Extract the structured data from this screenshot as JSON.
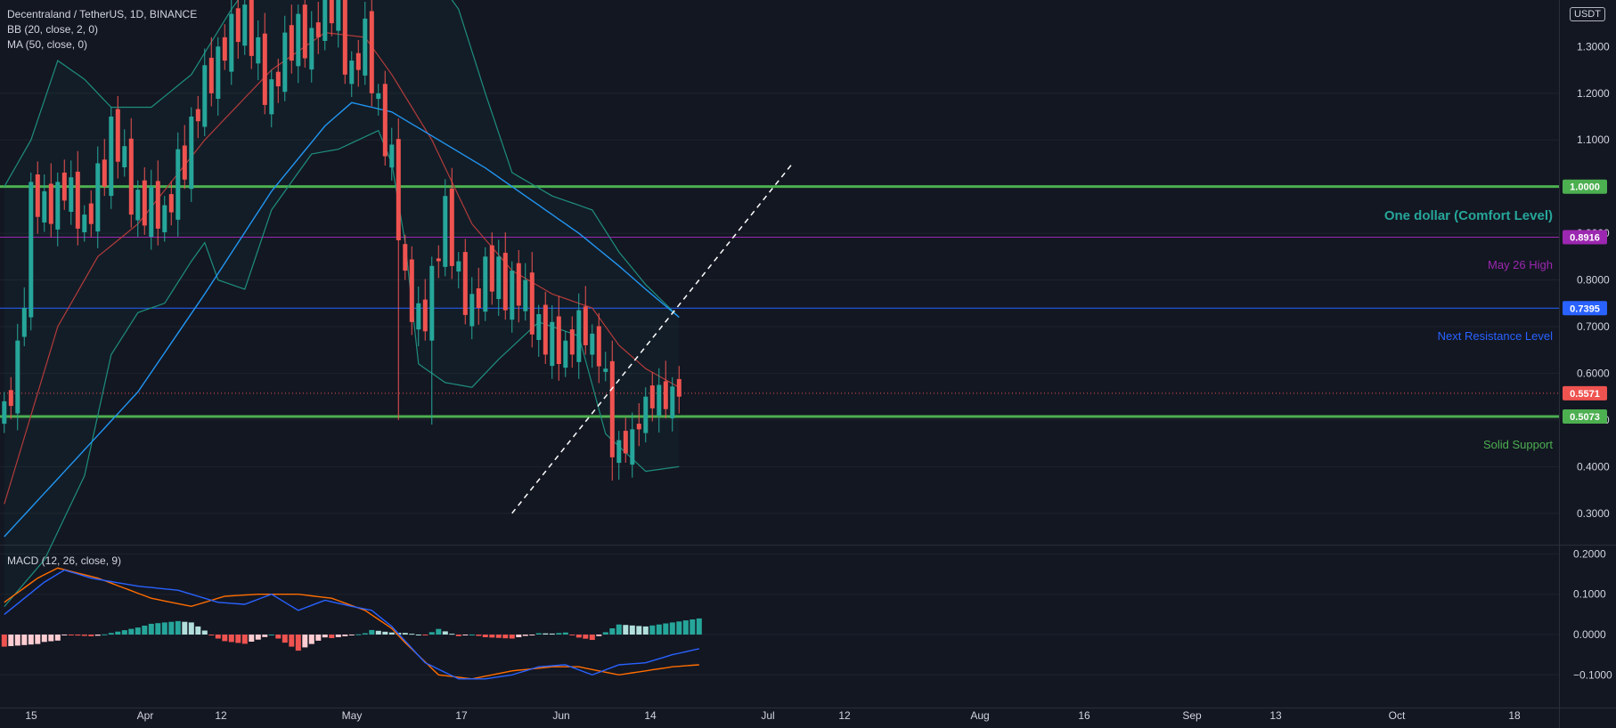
{
  "header": {
    "title": "Decentraland / TetherUS, 1D, BINANCE",
    "bb_label": "BB (20, close, 2, 0)",
    "ma_label": "MA (50, close, 0)",
    "macd_label": "MACD (12, 26, close, 9)",
    "currency": "USDT"
  },
  "colors": {
    "background": "#131722",
    "up": "#26a69a",
    "down": "#ef5350",
    "ma": "#2196f3",
    "bb_basis": "#b23b3b",
    "bb_band": "#1e8e7e",
    "macd_line": "#2962ff",
    "signal_line": "#ff6d00",
    "grid": "#1e222d",
    "axis_text": "#d1d4dc"
  },
  "chart_data": {
    "type": "candlestick",
    "symbol": "Decentraland / TetherUS",
    "timeframe": "1D",
    "exchange": "BINANCE",
    "price_axis": {
      "ticks": [
        "0.3000",
        "0.4000",
        "0.5000",
        "0.6000",
        "0.7000",
        "0.8000",
        "0.9000",
        "1.1000",
        "1.2000",
        "1.3000"
      ],
      "ylim": [
        0.28,
        1.46
      ]
    },
    "time_axis": {
      "labels": [
        "15",
        "Apr",
        "12",
        "May",
        "17",
        "Jun",
        "14",
        "Jul",
        "12",
        "Aug",
        "16",
        "Sep",
        "13",
        "Oct",
        "18"
      ]
    },
    "horizontal_levels": [
      {
        "price": 1.0,
        "badge": "1.0000",
        "label": "One dollar (Comfort Level)",
        "color": "#4caf50",
        "width": 3
      },
      {
        "price": 0.8916,
        "badge": "0.8916",
        "label": "May 26 High",
        "color": "#9c27b0",
        "width": 1
      },
      {
        "price": 0.7395,
        "badge": "0.7395",
        "label": "Next Resistance Level",
        "color": "#2962ff",
        "width": 1
      },
      {
        "price": 0.5073,
        "badge": "0.5073",
        "label": "Solid Support",
        "color": "#4caf50",
        "width": 3
      }
    ],
    "last_price": {
      "price": 0.5571,
      "badge": "0.5571",
      "color": "#ef5350"
    },
    "trendline": {
      "from": {
        "bar": 76,
        "price": 0.3
      },
      "to": {
        "bar": 118,
        "price": 1.05
      },
      "style": "dashed",
      "color": "#ffffff"
    },
    "macd_axis": {
      "ticks": [
        "0.2000",
        "0.1000",
        "0.0000",
        "−0.1000"
      ],
      "ylim": [
        -0.15,
        0.22
      ]
    },
    "macd_waypoints": [
      [
        0,
        0.05
      ],
      [
        6,
        0.13
      ],
      [
        9,
        0.16
      ],
      [
        13,
        0.14
      ],
      [
        20,
        0.12
      ],
      [
        26,
        0.11
      ],
      [
        32,
        0.08
      ],
      [
        36,
        0.075
      ],
      [
        40,
        0.1
      ],
      [
        44,
        0.06
      ],
      [
        48,
        0.085
      ],
      [
        52,
        0.07
      ],
      [
        55,
        0.06
      ],
      [
        58,
        0.02
      ],
      [
        63,
        -0.07
      ],
      [
        68,
        -0.11
      ],
      [
        72,
        -0.11
      ],
      [
        76,
        -0.1
      ],
      [
        80,
        -0.08
      ],
      [
        84,
        -0.075
      ],
      [
        88,
        -0.1
      ],
      [
        92,
        -0.075
      ],
      [
        96,
        -0.07
      ],
      [
        100,
        -0.05
      ],
      [
        104,
        -0.035
      ]
    ],
    "signal_waypoints": [
      [
        0,
        0.08
      ],
      [
        5,
        0.14
      ],
      [
        8,
        0.165
      ],
      [
        14,
        0.14
      ],
      [
        22,
        0.09
      ],
      [
        28,
        0.07
      ],
      [
        33,
        0.095
      ],
      [
        38,
        0.1
      ],
      [
        44,
        0.1
      ],
      [
        49,
        0.09
      ],
      [
        54,
        0.06
      ],
      [
        58,
        0.015
      ],
      [
        60,
        -0.02
      ],
      [
        65,
        -0.1
      ],
      [
        70,
        -0.11
      ],
      [
        76,
        -0.09
      ],
      [
        82,
        -0.08
      ],
      [
        86,
        -0.08
      ],
      [
        92,
        -0.1
      ],
      [
        96,
        -0.09
      ],
      [
        100,
        -0.08
      ],
      [
        104,
        -0.075
      ]
    ]
  }
}
